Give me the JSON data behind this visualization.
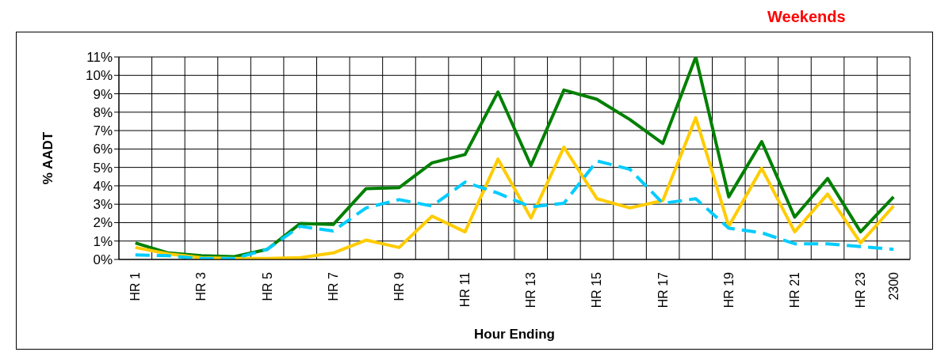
{
  "chart_data": {
    "type": "line",
    "title": "Weekends",
    "xlabel": "Hour Ending",
    "ylabel": "% AADT",
    "categories": [
      "HR 1",
      null,
      "HR 3",
      null,
      "HR 5",
      null,
      "HR 7",
      null,
      "HR 9",
      null,
      "HR 11",
      null,
      "HR 13",
      null,
      "HR 15",
      null,
      "HR 17",
      null,
      "HR 19",
      null,
      "HR 21",
      null,
      "HR 23",
      "2300"
    ],
    "series": [
      {
        "color": "#008000",
        "line_style": "solid",
        "values": [
          0.9,
          0.35,
          0.2,
          0.15,
          0.55,
          1.95,
          1.9,
          3.85,
          3.9,
          5.25,
          5.7,
          9.1,
          5.1,
          9.2,
          8.7,
          7.6,
          6.3,
          11.0,
          3.4,
          6.4,
          2.3,
          4.4,
          1.5,
          3.4
        ]
      },
      {
        "color": "#ffcc00",
        "line_style": "solid",
        "values": [
          0.65,
          0.3,
          0.1,
          0.05,
          0.05,
          0.1,
          0.35,
          1.05,
          0.65,
          2.35,
          1.5,
          5.45,
          2.25,
          6.1,
          3.3,
          2.8,
          3.2,
          7.7,
          1.8,
          4.95,
          1.5,
          3.55,
          0.9,
          2.9
        ]
      },
      {
        "color": "#00ccff",
        "line_style": "dashed",
        "values": [
          0.25,
          0.2,
          0.05,
          0.05,
          0.55,
          1.8,
          1.55,
          2.8,
          3.25,
          2.9,
          4.2,
          3.6,
          2.85,
          3.05,
          5.35,
          4.9,
          3.05,
          3.3,
          1.7,
          1.45,
          0.85,
          0.85,
          0.7,
          0.55
        ]
      }
    ],
    "ylim": [
      0,
      11
    ],
    "yticks": [
      {
        "value": 0,
        "label": "0%"
      },
      {
        "value": 1,
        "label": "1%"
      },
      {
        "value": 2,
        "label": "2%"
      },
      {
        "value": 3,
        "label": "3%"
      },
      {
        "value": 4,
        "label": "4%"
      },
      {
        "value": 5,
        "label": "5%"
      },
      {
        "value": 6,
        "label": "6%"
      },
      {
        "value": 7,
        "label": "7%"
      },
      {
        "value": 8,
        "label": "8%"
      },
      {
        "value": 9,
        "label": "9%"
      },
      {
        "value": 10,
        "label": "10%"
      },
      {
        "value": 11,
        "label": "11%"
      }
    ],
    "grid": true,
    "marker": "none"
  }
}
